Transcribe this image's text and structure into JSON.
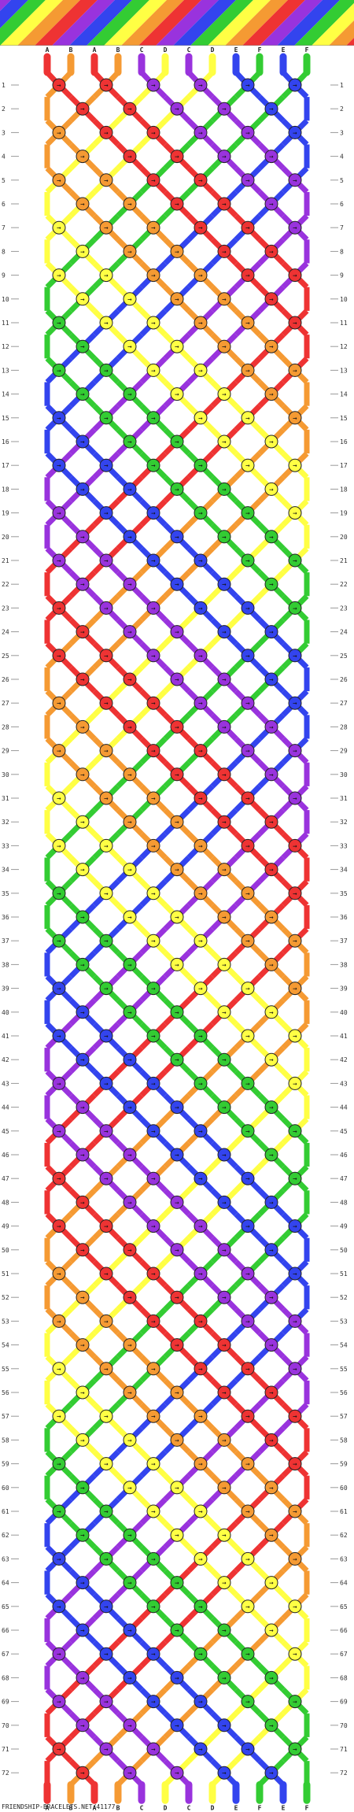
{
  "pattern": {
    "strand_letters": [
      "A",
      "B",
      "A",
      "B",
      "C",
      "D",
      "C",
      "D",
      "E",
      "F",
      "E",
      "F"
    ],
    "letter_colors": {
      "A": "#ee3333",
      "B": "#f59a33",
      "C": "#9933dd",
      "D": "#ffff44",
      "E": "#3344ee",
      "F": "#33cc33"
    },
    "preview_stripe_colors": [
      "#ffff44",
      "#f59a33",
      "#ee3333",
      "#9933dd",
      "#3344ee",
      "#33cc33"
    ],
    "row_count": 72,
    "knot_symbol": "→",
    "footer_text": "FRIENDSHIP-BRACELETS.NET/41177"
  }
}
